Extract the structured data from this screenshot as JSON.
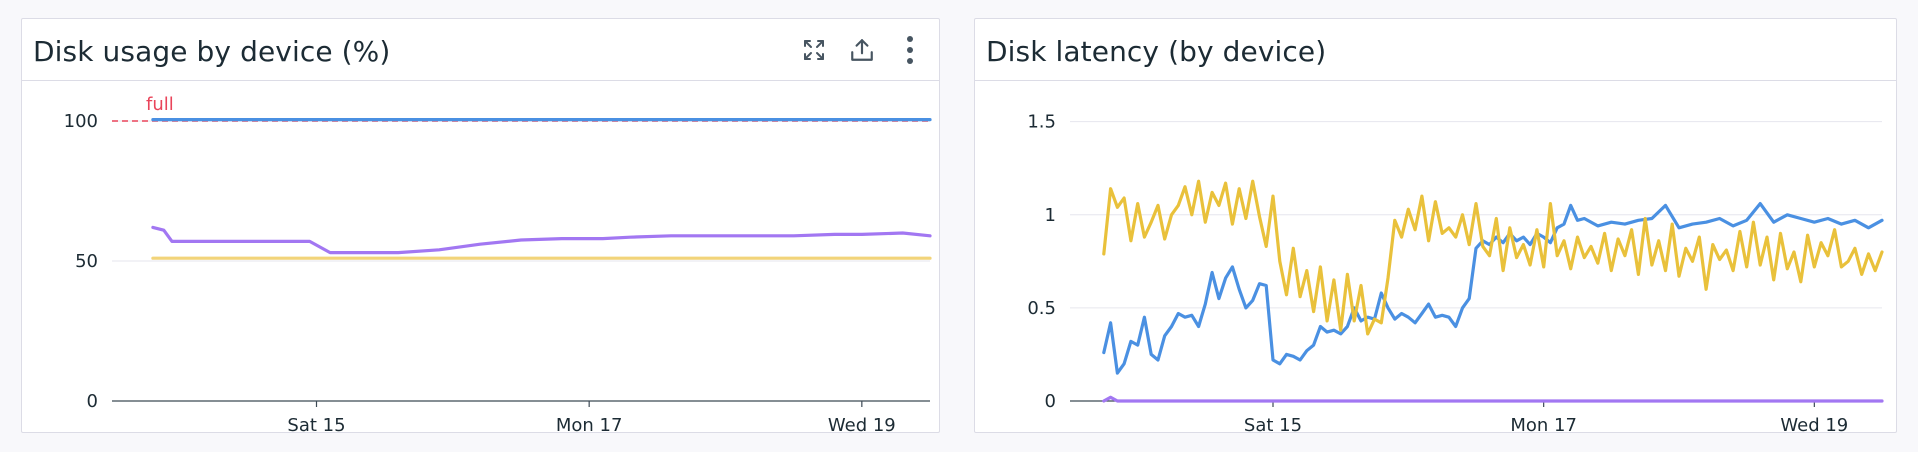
{
  "panels": [
    {
      "title": "Disk usage by device (%)",
      "tools": {
        "expand": "expand-icon",
        "export": "export-icon",
        "menu": "more-options-icon"
      }
    },
    {
      "title": "Disk latency (by device)"
    }
  ],
  "chart_data": [
    {
      "type": "line",
      "title": "Disk usage by device (%)",
      "x_tick_labels": [
        "Sat 15",
        "Mon 17",
        "Wed 19"
      ],
      "x_ticks": [
        1.0,
        3.0,
        5.0
      ],
      "x_range": [
        -0.5,
        5.5
      ],
      "ylim": [
        0,
        110
      ],
      "y_ticks": [
        0,
        50,
        100
      ],
      "grid": "horizontal",
      "markers": [
        {
          "label": "full",
          "y": 100,
          "color": "#e9445a"
        }
      ],
      "series": [
        {
          "color": "#4a90e2",
          "x": [
            -0.2,
            5.5
          ],
          "values": [
            100.5,
            100.5
          ]
        },
        {
          "color": "#a277f2",
          "x": [
            -0.2,
            -0.12,
            -0.06,
            0.2,
            0.4,
            0.6,
            0.8,
            0.95,
            1.1,
            1.3,
            1.6,
            1.9,
            2.2,
            2.5,
            2.8,
            3.1,
            3.3,
            3.6,
            3.9,
            4.2,
            4.5,
            4.8,
            5.0,
            5.3,
            5.5
          ],
          "values": [
            62,
            61,
            57,
            57,
            57,
            57,
            57,
            57,
            53,
            53,
            53,
            54,
            56,
            57.5,
            58,
            58,
            58.5,
            59,
            59,
            59,
            59,
            59.5,
            59.5,
            60,
            59
          ]
        },
        {
          "color": "#f2d479",
          "x": [
            -0.2,
            5.5
          ],
          "values": [
            51,
            51
          ]
        }
      ]
    },
    {
      "type": "line",
      "title": "Disk latency (by device)",
      "x_tick_labels": [
        "Sat 15",
        "Mon 17",
        "Wed 19"
      ],
      "x_ticks": [
        1.0,
        3.0,
        5.0
      ],
      "x_range": [
        -0.5,
        5.5
      ],
      "ylim": [
        0,
        1.6
      ],
      "y_ticks": [
        0,
        0.5,
        1,
        1.5
      ],
      "y_tick_labels": [
        "0",
        "0.5",
        "1",
        "1.5"
      ],
      "grid": "horizontal",
      "series": [
        {
          "color": "#4a90e2",
          "x": [
            -0.25,
            -0.2,
            -0.15,
            -0.1,
            -0.05,
            0.0,
            0.05,
            0.1,
            0.15,
            0.2,
            0.25,
            0.3,
            0.35,
            0.4,
            0.45,
            0.5,
            0.55,
            0.6,
            0.65,
            0.7,
            0.75,
            0.8,
            0.85,
            0.9,
            0.95,
            1.0,
            1.05,
            1.1,
            1.15,
            1.2,
            1.25,
            1.3,
            1.35,
            1.4,
            1.45,
            1.5,
            1.55,
            1.6,
            1.65,
            1.7,
            1.75,
            1.8,
            1.85,
            1.9,
            1.95,
            2.0,
            2.05,
            2.1,
            2.15,
            2.2,
            2.25,
            2.3,
            2.35,
            2.4,
            2.45,
            2.5,
            2.55,
            2.6,
            2.65,
            2.7,
            2.75,
            2.8,
            2.85,
            2.9,
            2.95,
            3.0,
            3.05,
            3.1,
            3.15,
            3.2,
            3.25,
            3.3,
            3.4,
            3.5,
            3.6,
            3.7,
            3.8,
            3.9,
            4.0,
            4.1,
            4.2,
            4.3,
            4.4,
            4.5,
            4.6,
            4.7,
            4.8,
            4.9,
            5.0,
            5.1,
            5.2,
            5.3,
            5.4,
            5.5
          ],
          "values": [
            0.26,
            0.42,
            0.15,
            0.2,
            0.32,
            0.3,
            0.45,
            0.25,
            0.22,
            0.35,
            0.4,
            0.47,
            0.45,
            0.46,
            0.4,
            0.52,
            0.69,
            0.55,
            0.66,
            0.72,
            0.6,
            0.5,
            0.54,
            0.63,
            0.62,
            0.22,
            0.2,
            0.25,
            0.24,
            0.22,
            0.27,
            0.3,
            0.4,
            0.37,
            0.38,
            0.36,
            0.4,
            0.5,
            0.43,
            0.45,
            0.44,
            0.58,
            0.5,
            0.44,
            0.47,
            0.45,
            0.42,
            0.47,
            0.52,
            0.45,
            0.46,
            0.45,
            0.4,
            0.5,
            0.55,
            0.82,
            0.86,
            0.84,
            0.88,
            0.85,
            0.9,
            0.86,
            0.88,
            0.84,
            0.9,
            0.88,
            0.85,
            0.93,
            0.95,
            1.05,
            0.97,
            0.98,
            0.94,
            0.96,
            0.95,
            0.97,
            0.98,
            1.05,
            0.93,
            0.95,
            0.96,
            0.98,
            0.94,
            0.97,
            1.06,
            0.96,
            1.0,
            0.98,
            0.96,
            0.98,
            0.95,
            0.97,
            0.93,
            0.97
          ]
        },
        {
          "color": "#e9c13b",
          "x": [
            -0.25,
            -0.2,
            -0.15,
            -0.1,
            -0.05,
            0.0,
            0.05,
            0.1,
            0.15,
            0.2,
            0.25,
            0.3,
            0.35,
            0.4,
            0.45,
            0.5,
            0.55,
            0.6,
            0.65,
            0.7,
            0.75,
            0.8,
            0.85,
            0.9,
            0.95,
            1.0,
            1.05,
            1.1,
            1.15,
            1.2,
            1.25,
            1.3,
            1.35,
            1.4,
            1.45,
            1.5,
            1.55,
            1.6,
            1.65,
            1.7,
            1.75,
            1.8,
            1.85,
            1.9,
            1.95,
            2.0,
            2.05,
            2.1,
            2.15,
            2.2,
            2.25,
            2.3,
            2.35,
            2.4,
            2.45,
            2.5,
            2.55,
            2.6,
            2.65,
            2.7,
            2.75,
            2.8,
            2.85,
            2.9,
            2.95,
            3.0,
            3.05,
            3.1,
            3.15,
            3.2,
            3.25,
            3.3,
            3.35,
            3.4,
            3.45,
            3.5,
            3.55,
            3.6,
            3.65,
            3.7,
            3.75,
            3.8,
            3.85,
            3.9,
            3.95,
            4.0,
            4.05,
            4.1,
            4.15,
            4.2,
            4.25,
            4.3,
            4.35,
            4.4,
            4.45,
            4.5,
            4.55,
            4.6,
            4.65,
            4.7,
            4.75,
            4.8,
            4.85,
            4.9,
            4.95,
            5.0,
            5.05,
            5.1,
            5.15,
            5.2,
            5.25,
            5.3,
            5.35,
            5.4,
            5.45,
            5.5
          ],
          "values": [
            0.79,
            1.14,
            1.04,
            1.09,
            0.86,
            1.06,
            0.88,
            0.96,
            1.05,
            0.87,
            1.0,
            1.05,
            1.15,
            1.0,
            1.18,
            0.96,
            1.12,
            1.05,
            1.17,
            0.95,
            1.14,
            0.98,
            1.18,
            0.99,
            0.83,
            1.1,
            0.75,
            0.57,
            0.82,
            0.56,
            0.7,
            0.48,
            0.72,
            0.43,
            0.65,
            0.38,
            0.68,
            0.43,
            0.62,
            0.36,
            0.44,
            0.42,
            0.66,
            0.97,
            0.88,
            1.03,
            0.92,
            1.1,
            0.86,
            1.07,
            0.9,
            0.93,
            0.88,
            1.0,
            0.84,
            1.06,
            0.83,
            0.78,
            0.98,
            0.7,
            0.93,
            0.77,
            0.84,
            0.73,
            0.92,
            0.72,
            1.06,
            0.78,
            0.86,
            0.71,
            0.88,
            0.77,
            0.83,
            0.74,
            0.9,
            0.7,
            0.87,
            0.78,
            0.92,
            0.68,
            0.98,
            0.73,
            0.86,
            0.7,
            0.95,
            0.67,
            0.82,
            0.75,
            0.88,
            0.6,
            0.84,
            0.76,
            0.81,
            0.7,
            0.91,
            0.72,
            0.96,
            0.73,
            0.88,
            0.65,
            0.9,
            0.71,
            0.8,
            0.64,
            0.89,
            0.72,
            0.85,
            0.78,
            0.92,
            0.72,
            0.75,
            0.82,
            0.68,
            0.79,
            0.7,
            0.8
          ]
        },
        {
          "color": "#a277f2",
          "x": [
            -0.25,
            -0.2,
            -0.15,
            5.5
          ],
          "values": [
            0.0,
            0.02,
            0.0,
            0.0
          ]
        }
      ]
    }
  ]
}
